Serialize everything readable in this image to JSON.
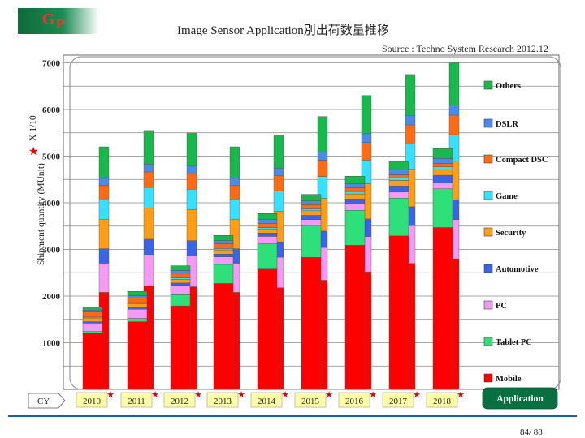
{
  "header": {
    "logo_g": "G",
    "logo_p": "P",
    "title": "Image Sensor Application別出荷数量推移",
    "source": "Source : Techno System Research 2012.12"
  },
  "axis": {
    "ylabel": "Shipment quantity (MUnit)",
    "unit_note": "X 1/10",
    "cy_label": "CY",
    "legend_title": "Application"
  },
  "footer": {
    "page": "84/ 88"
  },
  "colors": {
    "Mobile": "#ff0000",
    "Tablet PC": "#2de07a",
    "PC": "#f49af4",
    "Automotive": "#3b63e8",
    "Security": "#ff9e14",
    "Game": "#38e0ff",
    "Compact DSC": "#ff6a14",
    "DSLR": "#4a8ae8",
    "Others": "#18b84c",
    "year_box": "#ffffa8",
    "legend_box": "#087040"
  },
  "chart_data": {
    "type": "bar",
    "stacked": true,
    "ylim": [
      0,
      7000
    ],
    "yticks": [
      1000,
      2000,
      3000,
      4000,
      5000,
      6000,
      7000
    ],
    "categories": [
      "2010",
      "2011",
      "2012",
      "2013",
      "2014",
      "2015",
      "2016",
      "2017",
      "2018"
    ],
    "series": [
      {
        "name": "Mobile",
        "values": [
          1210,
          1450,
          1790,
          2270,
          2580,
          2830,
          3090,
          3290,
          3470
        ]
      },
      {
        "name": "Tablet PC",
        "values": [
          30,
          70,
          240,
          410,
          550,
          670,
          750,
          810,
          830
        ]
      },
      {
        "name": "PC",
        "values": [
          180,
          200,
          200,
          160,
          150,
          140,
          130,
          130,
          130
        ]
      },
      {
        "name": "Automotive",
        "values": [
          30,
          40,
          50,
          60,
          70,
          90,
          110,
          130,
          160
        ]
      },
      {
        "name": "Security",
        "values": [
          80,
          80,
          80,
          90,
          90,
          100,
          110,
          120,
          120
        ]
      },
      {
        "name": "Game",
        "values": [
          20,
          20,
          30,
          30,
          30,
          40,
          50,
          50,
          60
        ]
      },
      {
        "name": "Compact DSC",
        "values": [
          110,
          100,
          100,
          100,
          90,
          90,
          80,
          70,
          70
        ]
      },
      {
        "name": "DSLR",
        "values": [
          40,
          50,
          60,
          70,
          80,
          80,
          90,
          100,
          110
        ]
      },
      {
        "name": "Others",
        "values": [
          70,
          90,
          100,
          110,
          130,
          140,
          160,
          180,
          210
        ]
      }
    ]
  },
  "chart_data_extra_note": "",
  "background_bars": {
    "tops": [
      5200,
      5550,
      5500,
      5200,
      5450,
      5850,
      6300,
      6750,
      7000
    ]
  }
}
